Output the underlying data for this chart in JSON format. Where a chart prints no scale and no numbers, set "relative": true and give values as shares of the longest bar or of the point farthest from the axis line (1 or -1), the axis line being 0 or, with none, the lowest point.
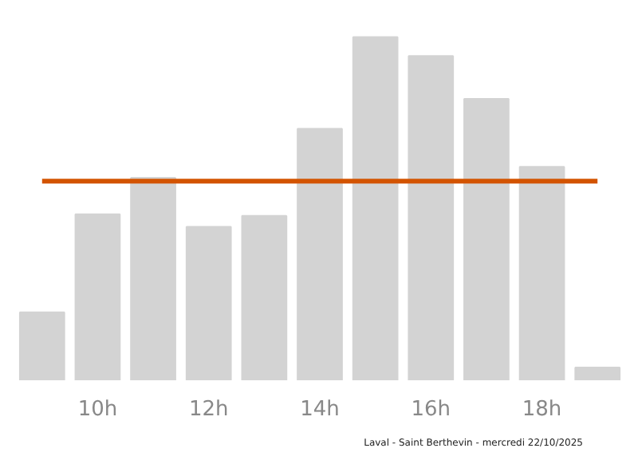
{
  "chart_data": {
    "type": "bar",
    "relative": true,
    "categories": [
      null,
      "10h",
      null,
      "12h",
      null,
      "14h",
      null,
      "16h",
      null,
      "18h",
      null
    ],
    "values": [
      0.198,
      0.484,
      0.59,
      0.447,
      0.479,
      0.733,
      1,
      0.945,
      0.82,
      0.622,
      0.037
    ],
    "color": "#d3d3d3",
    "ref_lines": [
      {
        "axis": "y",
        "value": 0.58,
        "color": "#d35400"
      }
    ],
    "annotations": [
      "Laval - Saint Berthevin - mercredi 22/10/2025"
    ]
  }
}
